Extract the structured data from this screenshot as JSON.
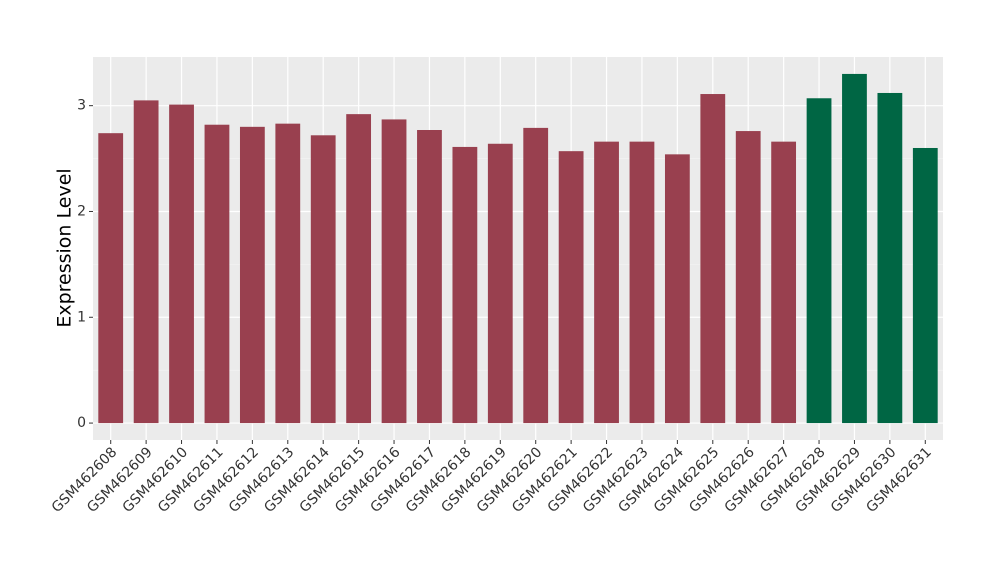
{
  "chart_data": {
    "type": "bar",
    "ylabel": "Expression Level",
    "categories": [
      "GSM462608",
      "GSM462609",
      "GSM462610",
      "GSM462611",
      "GSM462612",
      "GSM462613",
      "GSM462614",
      "GSM462615",
      "GSM462616",
      "GSM462617",
      "GSM462618",
      "GSM462619",
      "GSM462620",
      "GSM462621",
      "GSM462622",
      "GSM462623",
      "GSM462624",
      "GSM462625",
      "GSM462626",
      "GSM462627",
      "GSM462628",
      "GSM462629",
      "GSM462630",
      "GSM462631"
    ],
    "values": [
      2.74,
      3.05,
      3.01,
      2.82,
      2.8,
      2.83,
      2.72,
      2.92,
      2.87,
      2.77,
      2.61,
      2.64,
      2.79,
      2.57,
      2.66,
      2.66,
      2.54,
      3.11,
      2.76,
      2.66,
      3.07,
      3.3,
      3.12,
      2.6
    ],
    "colors": [
      "#99404f",
      "#99404f",
      "#99404f",
      "#99404f",
      "#99404f",
      "#99404f",
      "#99404f",
      "#99404f",
      "#99404f",
      "#99404f",
      "#99404f",
      "#99404f",
      "#99404f",
      "#99404f",
      "#99404f",
      "#99404f",
      "#99404f",
      "#99404f",
      "#99404f",
      "#99404f",
      "#006644",
      "#006644",
      "#006644",
      "#006644"
    ],
    "ylim": [
      -0.16,
      3.46
    ],
    "yticks": [
      0,
      1,
      2,
      3
    ],
    "yminor": [
      0.5,
      1.5,
      2.5
    ],
    "grid": true
  }
}
